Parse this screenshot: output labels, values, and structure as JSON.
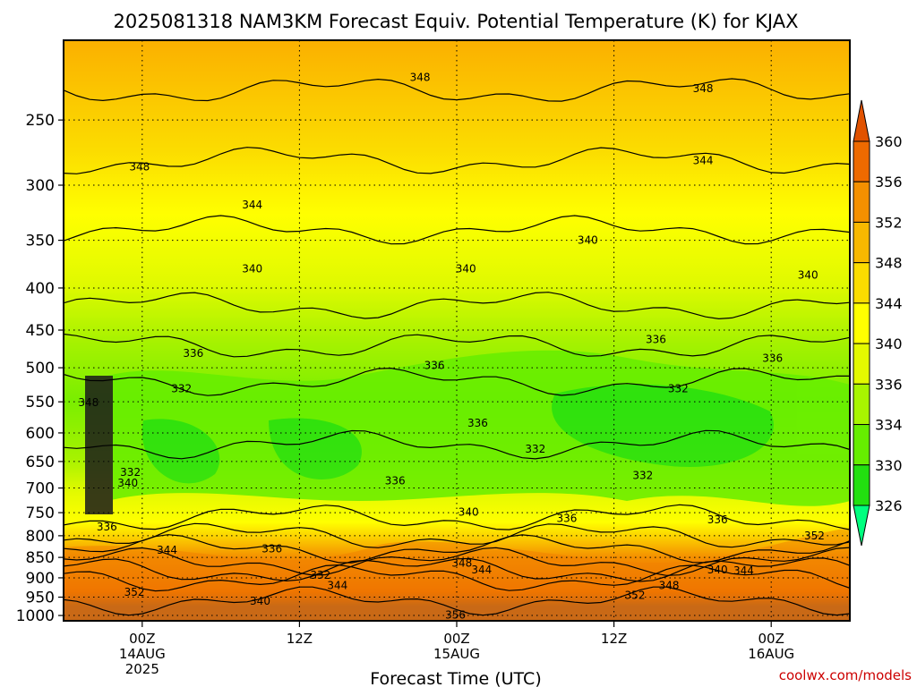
{
  "chart_data": {
    "type": "heatmap",
    "title": "2025081318 NAM3KM Forecast Equiv. Potential Temperature (K) for KJAX",
    "xlabel": "Forecast Time (UTC)",
    "ylabel": "",
    "watermark": "coolwx.com/models",
    "x_ticks": [
      {
        "hour": 6,
        "lines": [
          "00Z",
          "14AUG",
          "2025"
        ]
      },
      {
        "hour": 18,
        "lines": [
          "12Z"
        ]
      },
      {
        "hour": 30,
        "lines": [
          "00Z",
          "15AUG"
        ]
      },
      {
        "hour": 42,
        "lines": [
          "12Z"
        ]
      },
      {
        "hour": 54,
        "lines": [
          "00Z",
          "16AUG"
        ]
      }
    ],
    "xlim": [
      0,
      60
    ],
    "y_ticks": [
      250,
      300,
      350,
      400,
      450,
      500,
      550,
      600,
      650,
      700,
      750,
      800,
      850,
      900,
      950,
      1000
    ],
    "ylim": [
      1015,
      200
    ],
    "ylog": true,
    "grid": true,
    "colorbar": {
      "levels": [
        326,
        330,
        334,
        336,
        340,
        344,
        348,
        352,
        356,
        360
      ],
      "colors": [
        "#00ff7f",
        "#22e010",
        "#66ee00",
        "#a8f500",
        "#e4fa00",
        "#ffff00",
        "#fbdc00",
        "#f8b800",
        "#f49000",
        "#ee6a00",
        "#e15200"
      ]
    },
    "contour_labels": [
      {
        "v": "348",
        "h": 27.2,
        "p": 222
      },
      {
        "v": "348",
        "h": 48.8,
        "p": 229
      },
      {
        "v": "348",
        "h": 5.8,
        "p": 285
      },
      {
        "v": "344",
        "h": 14.4,
        "p": 317
      },
      {
        "v": "344",
        "h": 48.8,
        "p": 280
      },
      {
        "v": "340",
        "h": 14.4,
        "p": 379
      },
      {
        "v": "340",
        "h": 30.7,
        "p": 379
      },
      {
        "v": "340",
        "h": 40.0,
        "p": 350
      },
      {
        "v": "340",
        "h": 56.8,
        "p": 386
      },
      {
        "v": "336",
        "h": 9.9,
        "p": 480
      },
      {
        "v": "336",
        "h": 28.3,
        "p": 497
      },
      {
        "v": "336",
        "h": 45.2,
        "p": 462
      },
      {
        "v": "336",
        "h": 54.1,
        "p": 487
      },
      {
        "v": "336",
        "h": 31.6,
        "p": 584
      },
      {
        "v": "336",
        "h": 25.3,
        "p": 686
      },
      {
        "v": "336",
        "h": 38.4,
        "p": 762
      },
      {
        "v": "336",
        "h": 3.3,
        "p": 780
      },
      {
        "v": "336",
        "h": 15.9,
        "p": 830
      },
      {
        "v": "336",
        "h": 49.9,
        "p": 765
      },
      {
        "v": "332",
        "h": 9.0,
        "p": 530
      },
      {
        "v": "332",
        "h": 36.0,
        "p": 628
      },
      {
        "v": "332",
        "h": 46.9,
        "p": 530
      },
      {
        "v": "332",
        "h": 44.2,
        "p": 676
      },
      {
        "v": "332",
        "h": 5.1,
        "p": 670
      },
      {
        "v": "332",
        "h": 19.6,
        "p": 893
      },
      {
        "v": "340",
        "h": 30.9,
        "p": 749
      },
      {
        "v": "340",
        "h": 4.9,
        "p": 690
      },
      {
        "v": "340",
        "h": 49.9,
        "p": 880
      },
      {
        "v": "340",
        "h": 15.0,
        "p": 961
      },
      {
        "v": "344",
        "h": 7.9,
        "p": 833
      },
      {
        "v": "344",
        "h": 20.9,
        "p": 919
      },
      {
        "v": "344",
        "h": 31.9,
        "p": 880
      },
      {
        "v": "344",
        "h": 51.9,
        "p": 882
      },
      {
        "v": "348",
        "h": 1.9,
        "p": 551
      },
      {
        "v": "348",
        "h": 30.4,
        "p": 864
      },
      {
        "v": "348",
        "h": 46.2,
        "p": 920
      },
      {
        "v": "352",
        "h": 5.4,
        "p": 937
      },
      {
        "v": "352",
        "h": 43.6,
        "p": 945
      },
      {
        "v": "352",
        "h": 57.3,
        "p": 800
      },
      {
        "v": "356",
        "h": 29.9,
        "p": 998
      }
    ]
  }
}
